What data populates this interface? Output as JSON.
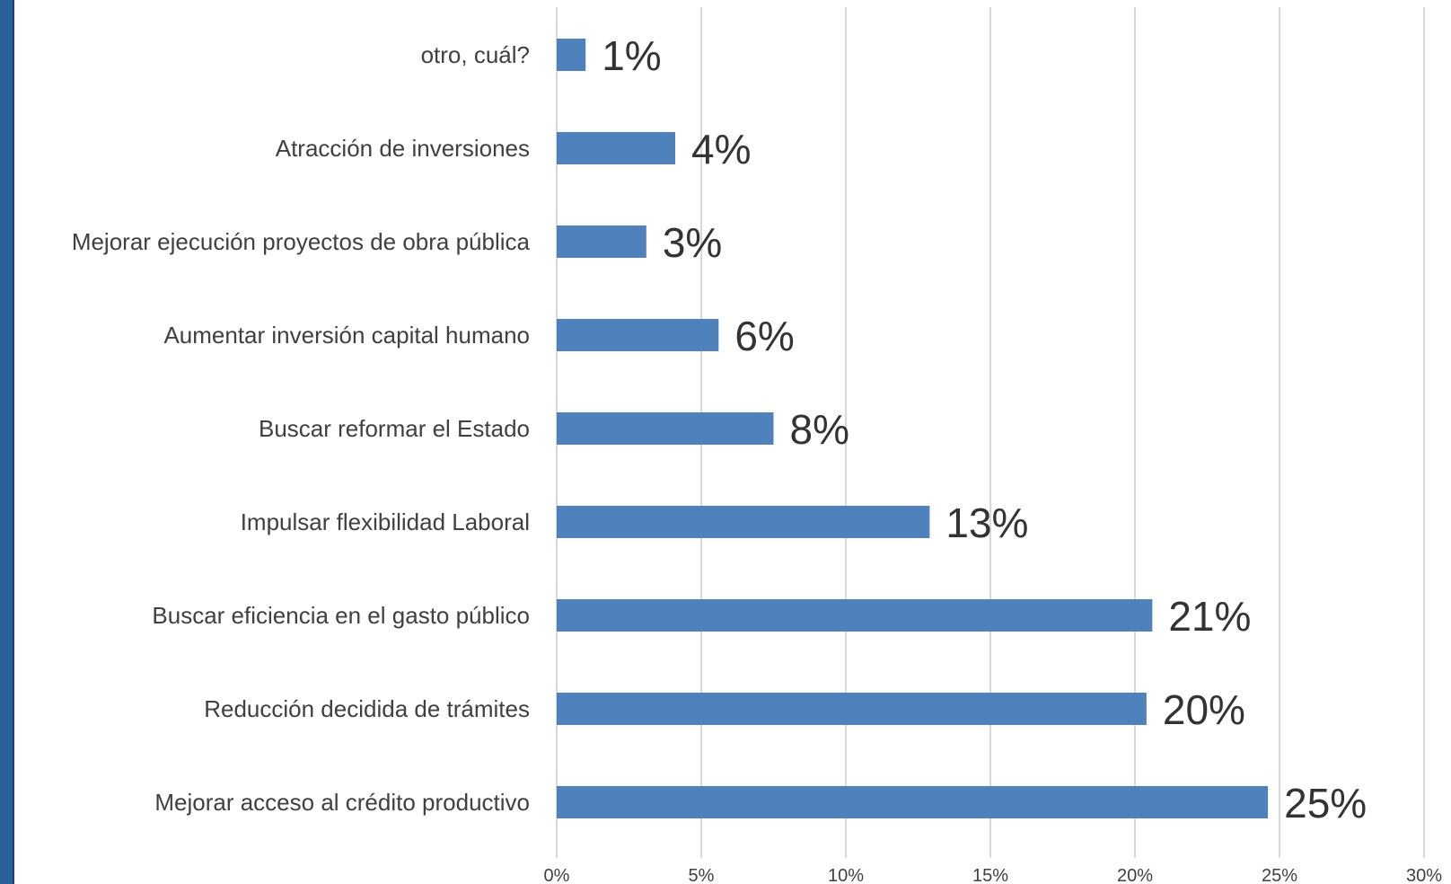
{
  "chart_data": {
    "type": "bar",
    "orientation": "horizontal",
    "categories": [
      "otro, cuál?",
      "Atracción de inversiones",
      "Mejorar ejecución proyectos de obra pública",
      "Aumentar inversión capital humano",
      "Buscar reformar el Estado",
      "Impulsar flexibilidad Laboral",
      "Buscar eficiencia en el gasto público",
      "Reducción decidida de trámites",
      "Mejorar acceso al crédito productivo"
    ],
    "values": [
      1.0,
      4.1,
      3.1,
      5.6,
      7.5,
      12.9,
      20.6,
      20.4,
      24.6
    ],
    "data_labels": [
      "1%",
      "4%",
      "3%",
      "6%",
      "8%",
      "13%",
      "21%",
      "20%",
      "25%"
    ],
    "xlim": [
      0,
      30
    ],
    "xticks": [
      0,
      5,
      10,
      15,
      20,
      25,
      30
    ],
    "xtick_labels": [
      "0%",
      "5%",
      "10%",
      "15%",
      "20%",
      "25%",
      "30%"
    ],
    "title": "",
    "xlabel": "",
    "ylabel": "",
    "grid": "vertical",
    "legend": "none",
    "bar_color": "#4f81bd",
    "grid_color": "#d9d9d9",
    "side_band_color": "#2a5f98"
  }
}
